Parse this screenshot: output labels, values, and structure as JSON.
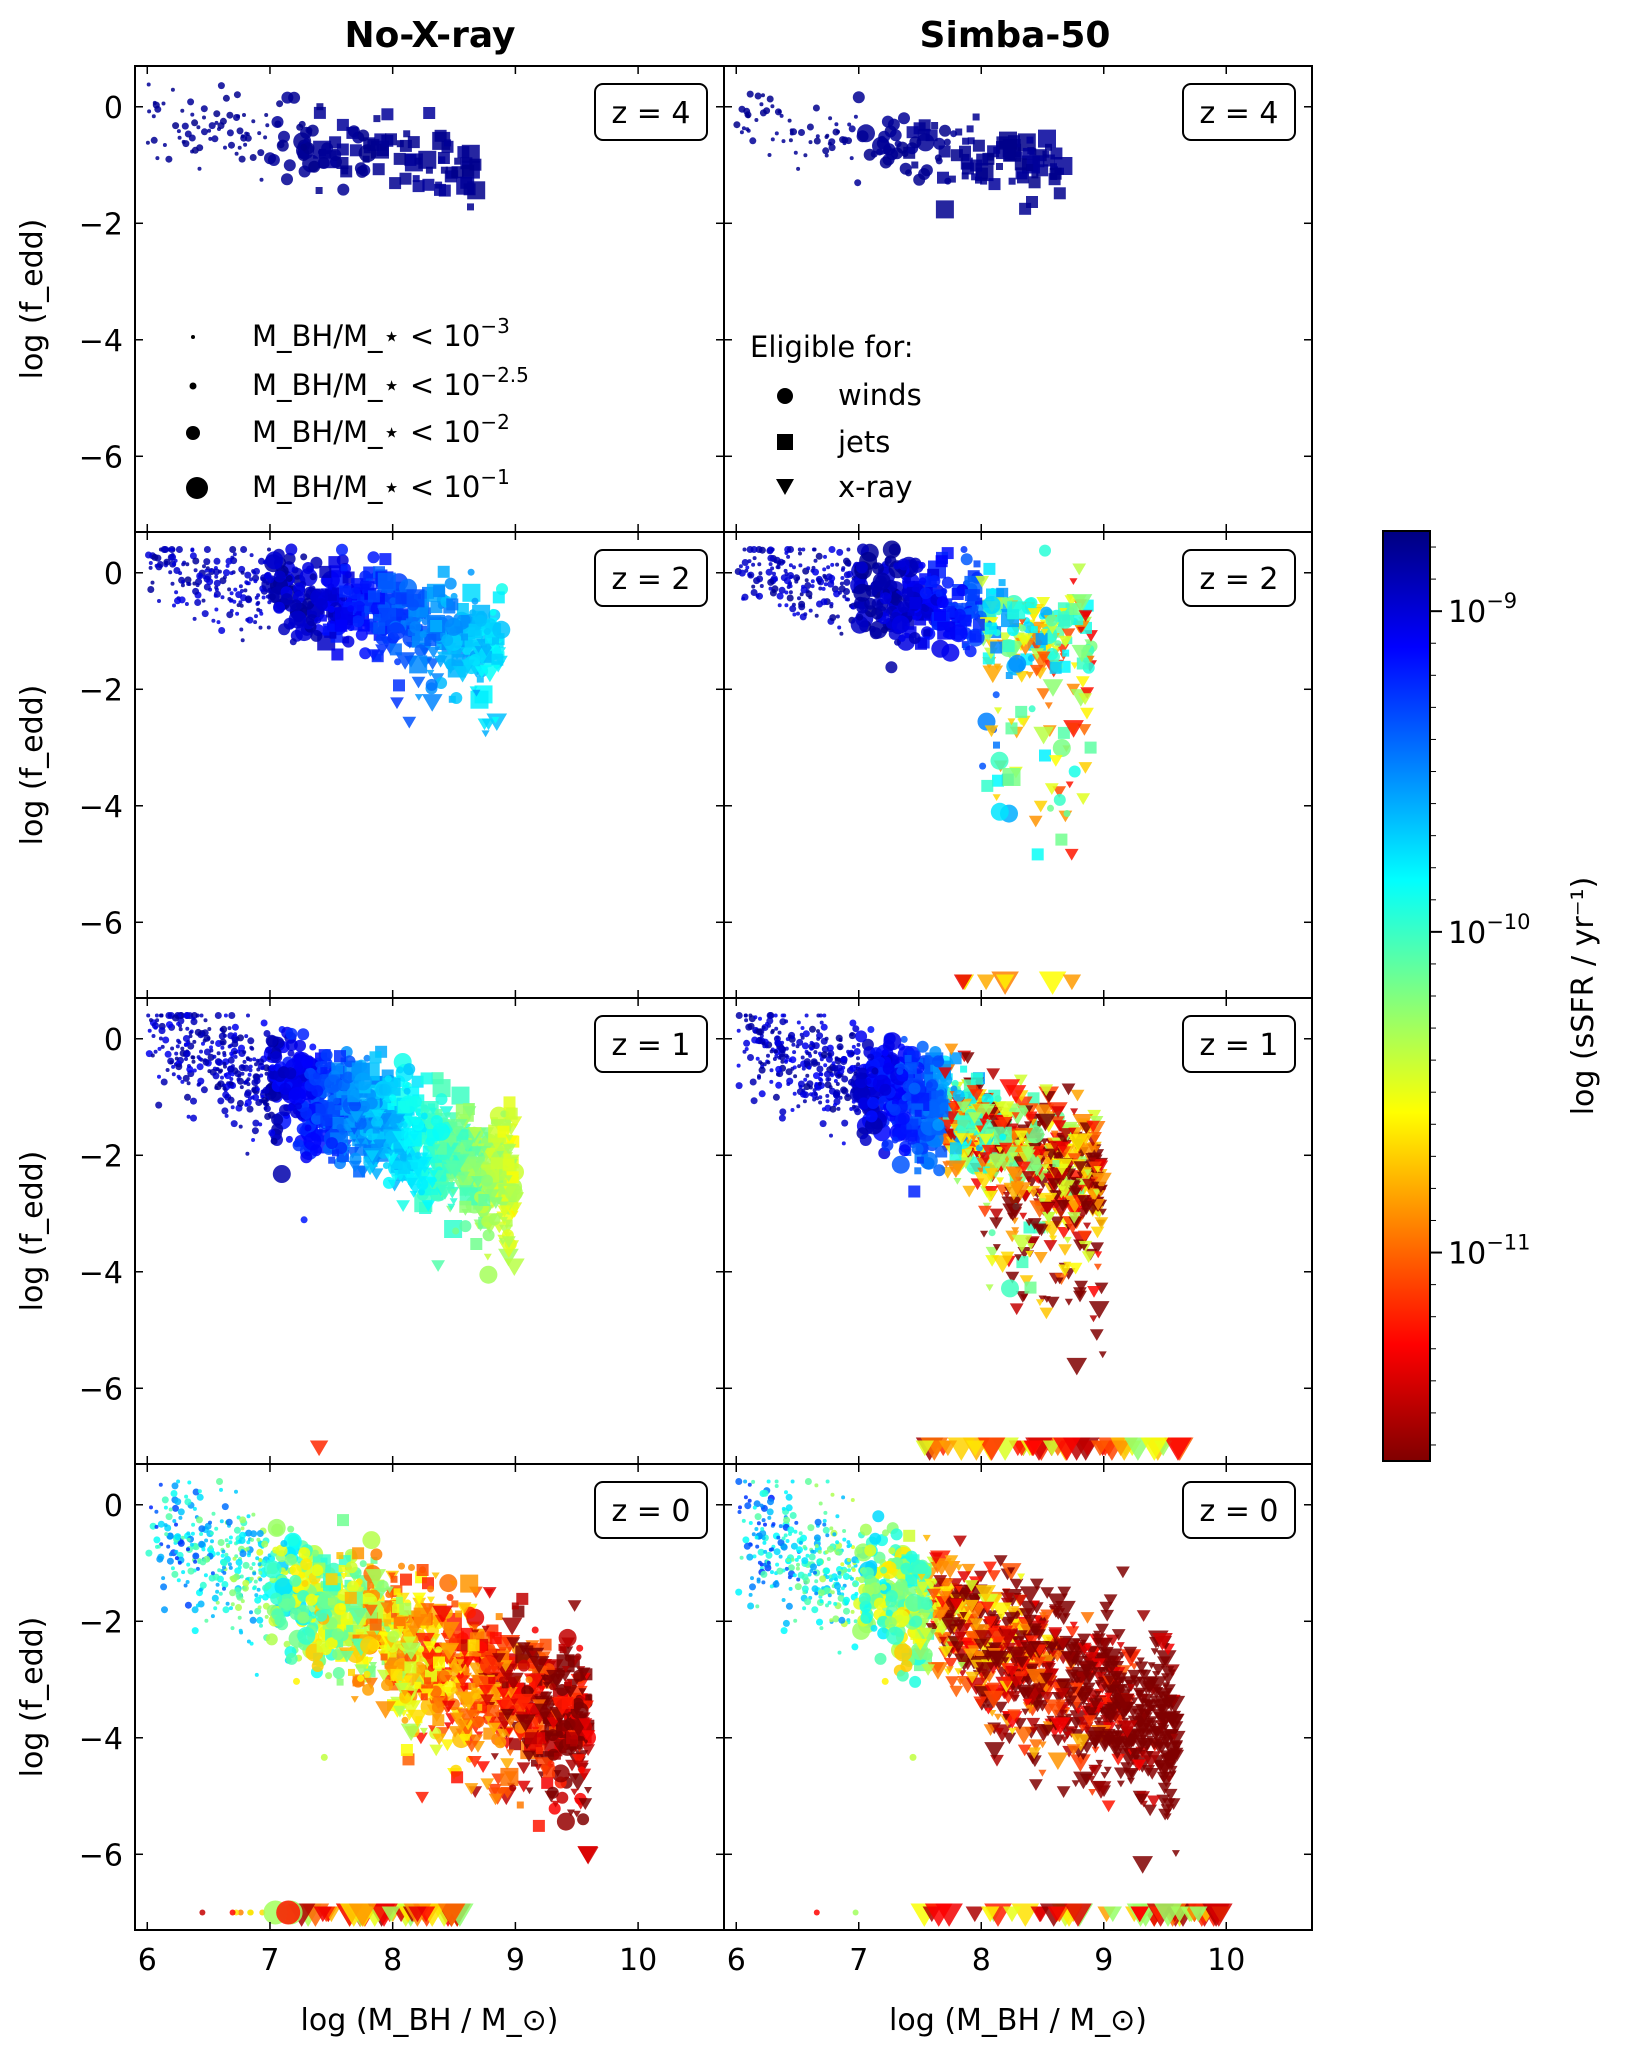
{
  "titles": {
    "left": "No-X-ray",
    "right": "Simba-50"
  },
  "x_label": "log (M_BH / M_⊙)",
  "y_label": "log (f_edd)",
  "colorbar": {
    "label": "log (sSFR / yr⁻¹)",
    "ticks": [
      {
        "mant": "10",
        "exp": "−9"
      },
      {
        "mant": "10",
        "exp": "−10"
      },
      {
        "mant": "10",
        "exp": "−11"
      }
    ],
    "range": [
      -11.65,
      -8.75
    ],
    "colormap": "jet_r"
  },
  "legend_size": {
    "items": [
      {
        "label": "M_BH/M_⋆ < 10",
        "exp": "−3"
      },
      {
        "label": "M_BH/M_⋆ < 10",
        "exp": "−2.5"
      },
      {
        "label": "M_BH/M_⋆ < 10",
        "exp": "−2"
      },
      {
        "label": "M_BH/M_⋆ < 10",
        "exp": "−1"
      }
    ]
  },
  "legend_shape": {
    "title": "Eligible for:",
    "items": [
      {
        "label": "winds",
        "marker": "circle"
      },
      {
        "label": "jets",
        "marker": "square"
      },
      {
        "label": "x-ray",
        "marker": "triangle-down"
      }
    ]
  },
  "chart_data": {
    "type": "scatter",
    "xlim": [
      5.9,
      10.7
    ],
    "ylim": [
      -7.3,
      0.7
    ],
    "x_ticks": [
      "6",
      "7",
      "8",
      "9",
      "10"
    ],
    "y_ticks": [
      "0",
      "−2",
      "−4",
      "−6"
    ],
    "panels": [
      {
        "row": 0,
        "col": 0,
        "z_label": "z = 4",
        "model": "No-X-ray",
        "xray": false
      },
      {
        "row": 0,
        "col": 1,
        "z_label": "z = 4",
        "model": "Simba-50",
        "xray": true
      },
      {
        "row": 1,
        "col": 0,
        "z_label": "z = 2",
        "model": "No-X-ray",
        "xray": false
      },
      {
        "row": 1,
        "col": 1,
        "z_label": "z = 2",
        "model": "Simba-50",
        "xray": true
      },
      {
        "row": 2,
        "col": 0,
        "z_label": "z = 1",
        "model": "No-X-ray",
        "xray": false
      },
      {
        "row": 2,
        "col": 1,
        "z_label": "z = 1",
        "model": "Simba-50",
        "xray": true
      },
      {
        "row": 3,
        "col": 0,
        "z_label": "z = 0",
        "model": "No-X-ray",
        "xray": false
      },
      {
        "row": 3,
        "col": 1,
        "z_label": "z = 0",
        "model": "Simba-50",
        "xray": true
      }
    ],
    "notes": "log f_edd vs log M_BH, colored by log sSFR; marker shape = feedback eligibility, marker size = M_BH/M_star bin"
  }
}
